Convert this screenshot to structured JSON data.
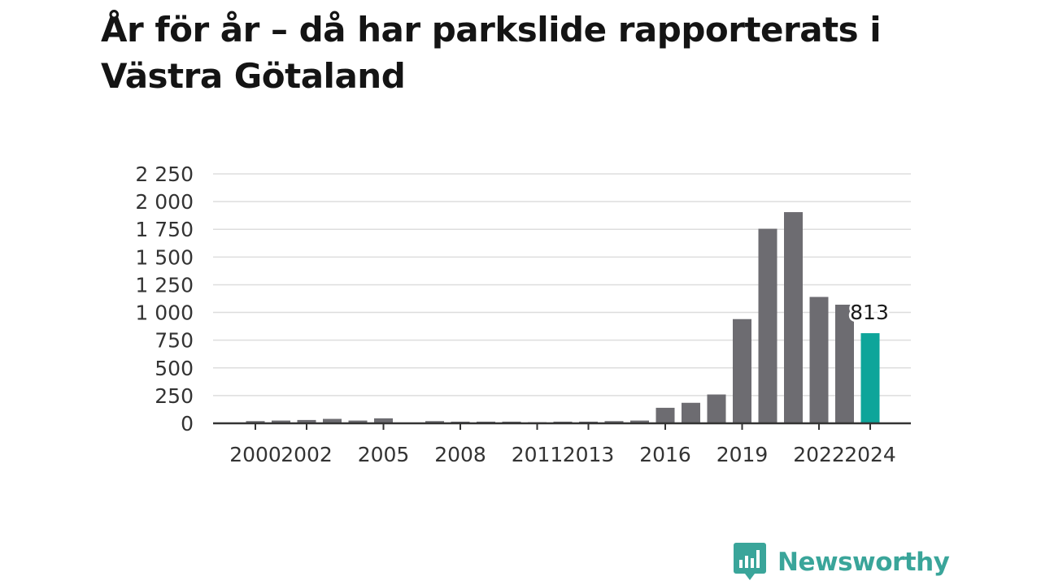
{
  "title": "År för år – då har parkslide rapporterats i Västra Götaland",
  "brand": {
    "name": "Newsworthy",
    "icon": "bar-chart-speech-bubble-icon",
    "color": "#3aa59a"
  },
  "colors": {
    "bar": "#6d6c71",
    "highlight": "#0ea59a",
    "grid": "#dddddd",
    "axis": "#333333"
  },
  "chart_data": {
    "type": "bar",
    "categories": [
      "2000",
      "2001",
      "2002",
      "2003",
      "2004",
      "2005",
      "2006",
      "2007",
      "2008",
      "2009",
      "2010",
      "2011",
      "2012",
      "2013",
      "2014",
      "2015",
      "2016",
      "2017",
      "2018",
      "2019",
      "2020",
      "2021",
      "2022",
      "2023",
      "2024"
    ],
    "values": [
      20,
      25,
      30,
      40,
      25,
      45,
      0,
      20,
      15,
      15,
      15,
      10,
      15,
      15,
      20,
      25,
      140,
      185,
      260,
      940,
      1755,
      1905,
      1140,
      1070,
      813
    ],
    "x_tick_labels": [
      "2000",
      "2002",
      "2005",
      "2008",
      "2011",
      "2013",
      "2016",
      "2019",
      "2022",
      "2024"
    ],
    "y_tick_labels": [
      "0",
      "250",
      "500",
      "750",
      "1 000",
      "1 250",
      "1 500",
      "1 750",
      "2 000",
      "2 250"
    ],
    "y_ticks": [
      0,
      250,
      500,
      750,
      1000,
      1250,
      1500,
      1750,
      2000,
      2250
    ],
    "ylim": [
      0,
      2250
    ],
    "highlight_category": "2024",
    "data_labels": [
      {
        "category": "2024",
        "text": "813"
      }
    ],
    "grid": true,
    "legend": "none",
    "xlabel": "",
    "ylabel": ""
  }
}
